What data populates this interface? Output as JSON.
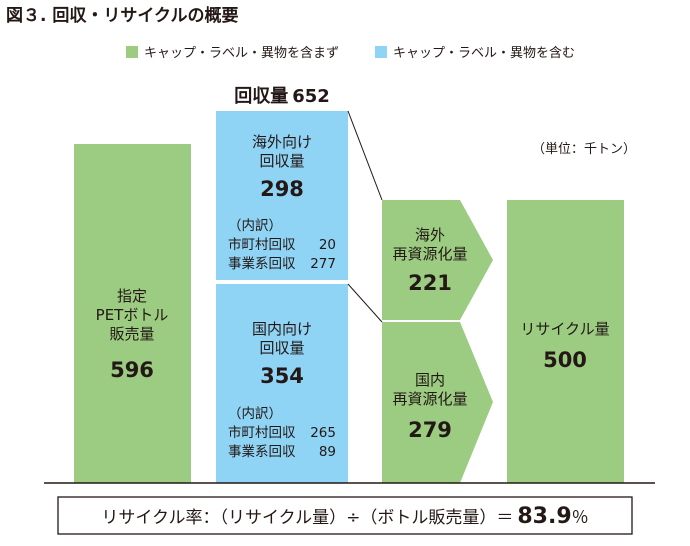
{
  "chart_data": {
    "type": "flow-bar",
    "title": "図３. 回収・リサイクルの概要",
    "unit": "（単位：千トン）",
    "legend": [
      {
        "label": "キャップ・ラベル・異物を含まず",
        "color": "#9ccc82"
      },
      {
        "label": "キャップ・ラベル・異物を含む",
        "color": "#8fd3f5"
      }
    ],
    "total_collection": {
      "label": "回収量",
      "value": 652
    },
    "bars": {
      "sales": {
        "lines": [
          "指定",
          "PETボトル",
          "販売量"
        ],
        "value": 596
      },
      "overseas_collection": {
        "lines": [
          "海外向け",
          "回収量"
        ],
        "value": 298,
        "breakdown_title": "（内訳）",
        "breakdown": [
          {
            "label": "市町村回収",
            "value": 20
          },
          {
            "label": "事業系回収",
            "value": 277
          }
        ]
      },
      "domestic_collection": {
        "lines": [
          "国内向け",
          "回収量"
        ],
        "value": 354,
        "breakdown_title": "（内訳）",
        "breakdown": [
          {
            "label": "市町村回収",
            "value": 265
          },
          {
            "label": "事業系回収",
            "value": 89
          }
        ]
      },
      "overseas_recycling": {
        "lines": [
          "海外",
          "再資源化量"
        ],
        "value": 221
      },
      "domestic_recycling": {
        "lines": [
          "国内",
          "再資源化量"
        ],
        "value": 279
      },
      "recycling_total": {
        "lines": [
          "リサイクル量"
        ],
        "value": 500
      }
    },
    "formula": {
      "text": "リサイクル率：（リサイクル量）÷（ボトル販売量）＝",
      "value": "83.9",
      "unit": "％"
    }
  },
  "colors": {
    "green": "#9ccc82",
    "blue": "#8fd3f5",
    "text": "#231815",
    "line": "#231815"
  }
}
